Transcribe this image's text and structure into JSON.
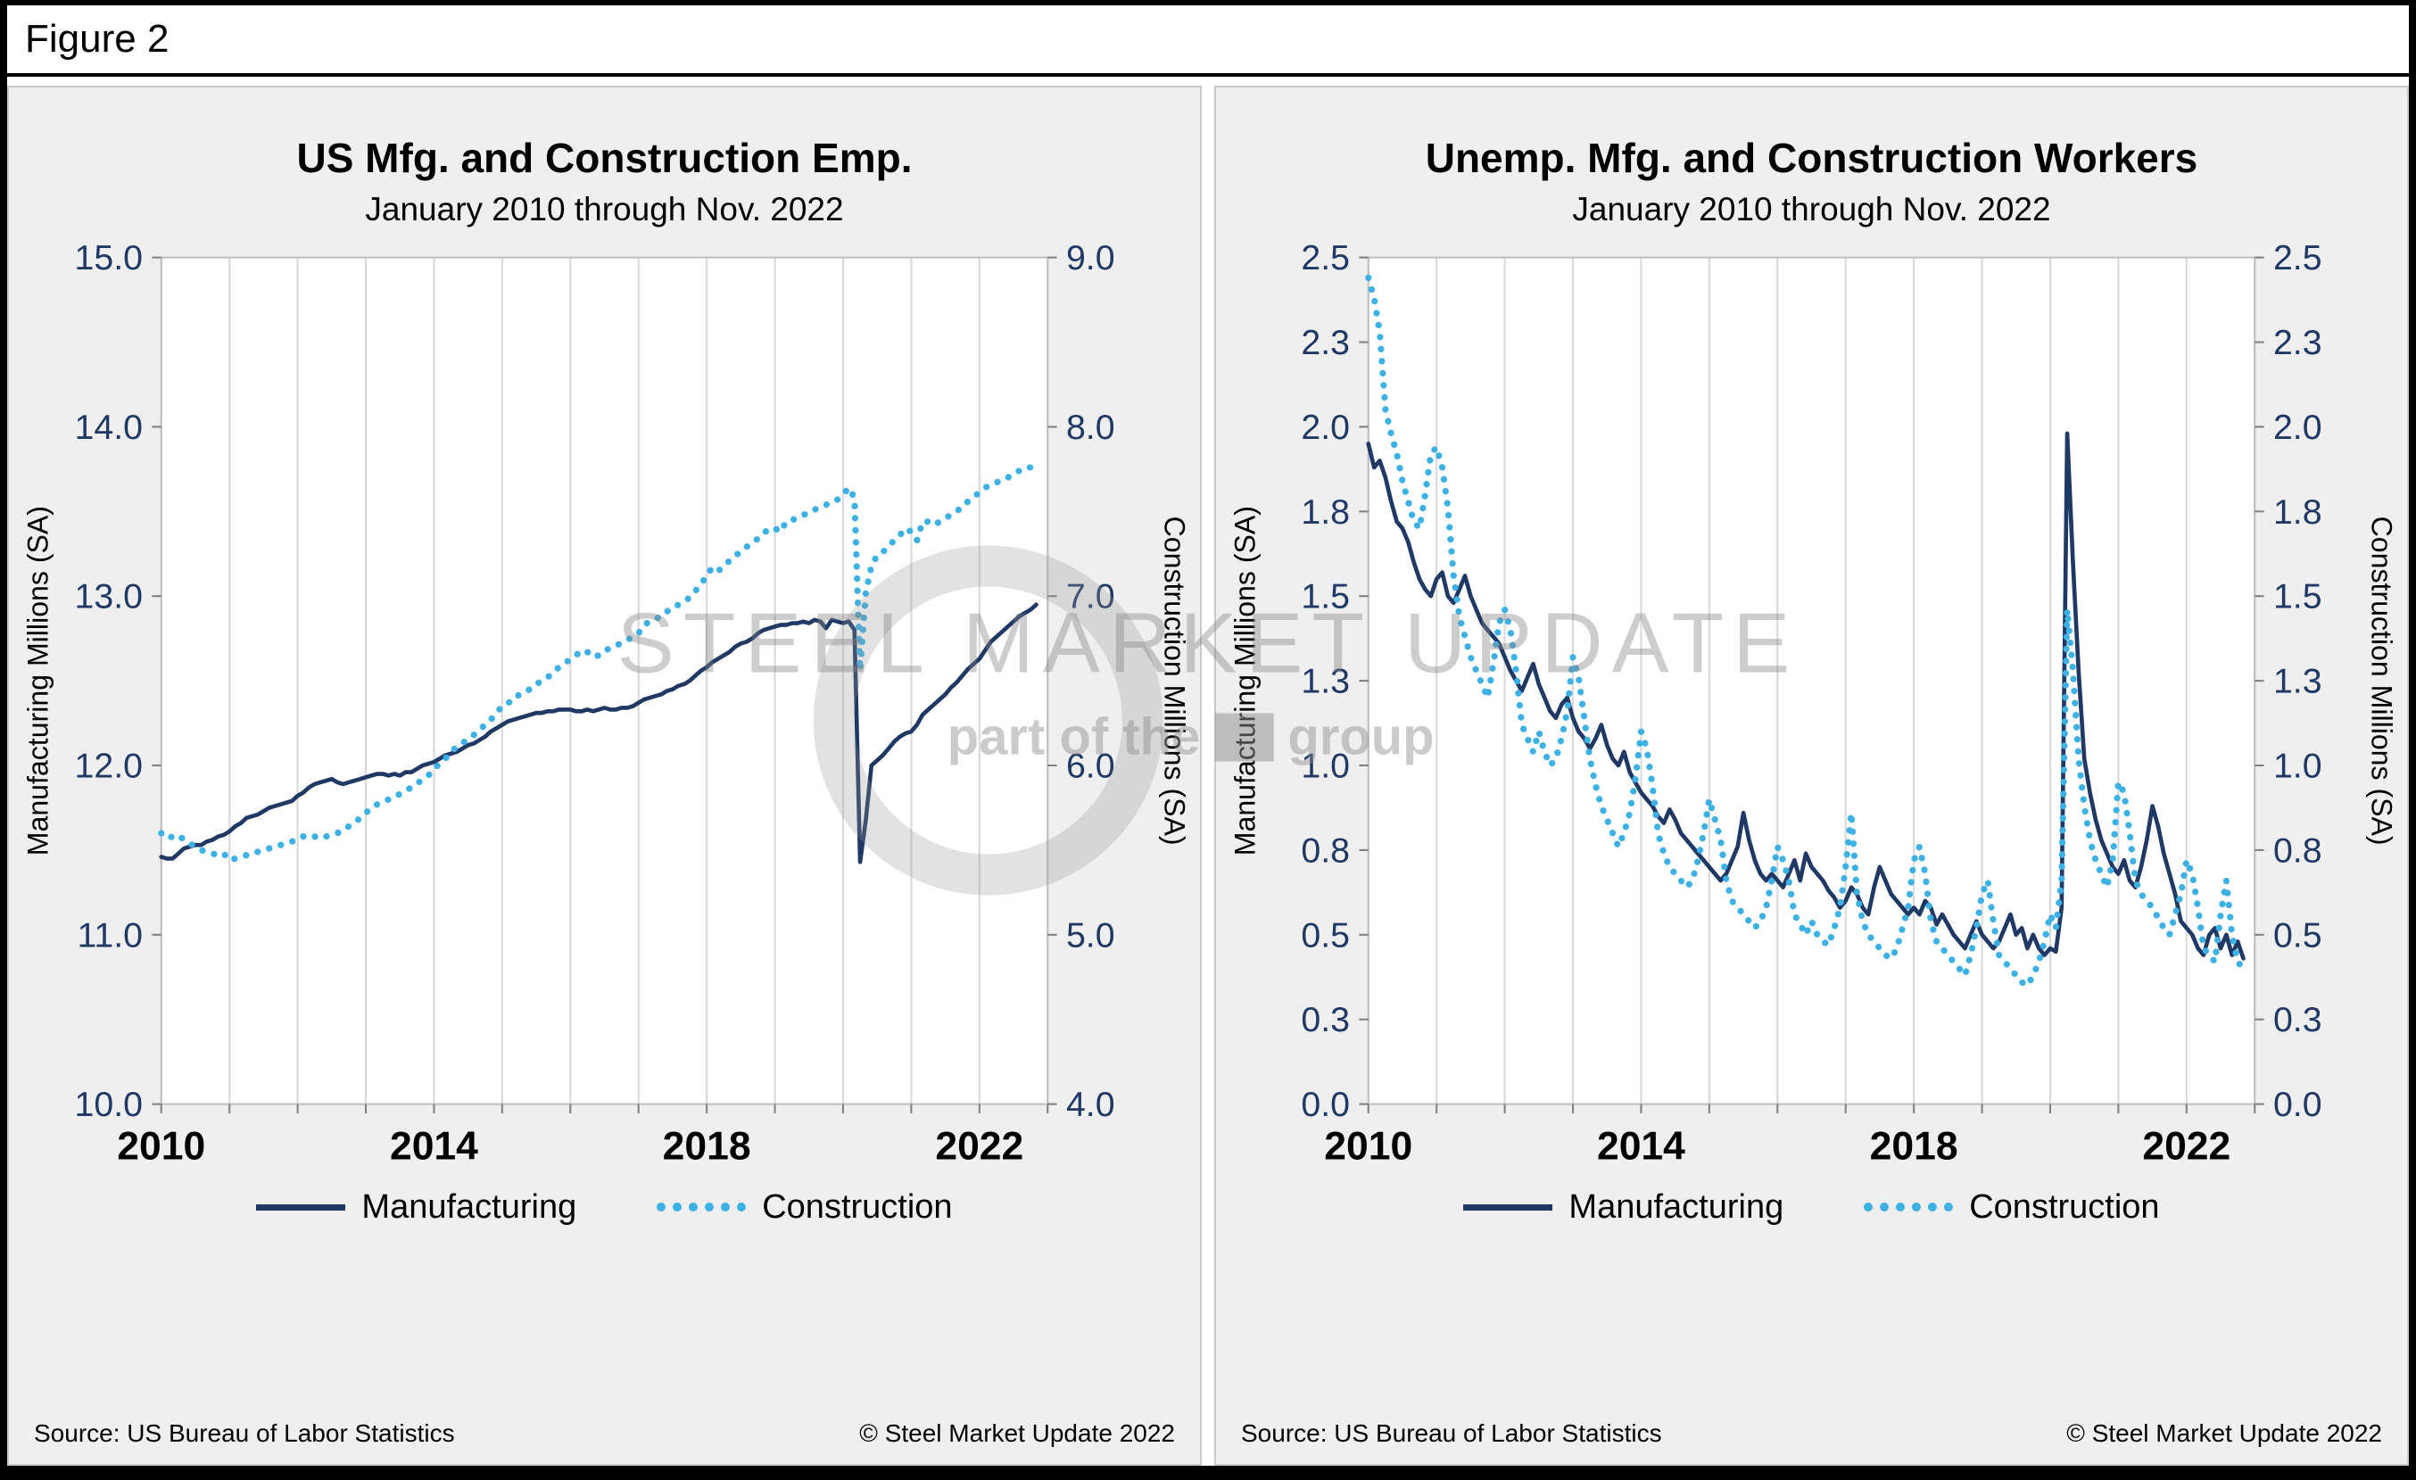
{
  "figure_label": "Figure 2",
  "watermark": {
    "line1": "STEEL MARKET UPDATE",
    "line2a": "part of the",
    "line2b": "group"
  },
  "colors": {
    "manufacturing": "#1F3864",
    "construction": "#3EB1E4",
    "grid": "#D9D9D9",
    "tick_label": "#1F3864",
    "plot_border": "#BFBFBF",
    "tick_mark": "#808080"
  },
  "panels": [
    {
      "source": "Source: US Bureau  of Labor Statistics",
      "copyright": "© Steel Market Update 2022"
    },
    {
      "source": "Source: US Bureau  of Labor Statistics",
      "copyright": "© Steel Market Update 2022"
    }
  ],
  "chart_data": [
    {
      "type": "line",
      "title": "US Mfg. and Construction Emp.",
      "subtitle": "January 2010 through Nov. 2022",
      "x_start": "2010-01",
      "x_end": "2022-11",
      "x_axis_years": [
        2010,
        2023
      ],
      "x_tick_years": [
        2010,
        2014,
        2018,
        2022
      ],
      "grid": "vertical-years",
      "legend_position": "bottom",
      "y_left": {
        "label": "Manufacturing Millions (SA)",
        "min": 10,
        "max": 15,
        "ticks": [
          10,
          11,
          12,
          13,
          14,
          15
        ],
        "labels": [
          "10.0",
          "11.0",
          "12.0",
          "13.0",
          "14.0",
          "15.0"
        ]
      },
      "y_right": {
        "label": "Construction Millions (SA)",
        "min": 4,
        "max": 9,
        "ticks": [
          4,
          5,
          6,
          7,
          8,
          9
        ],
        "labels": [
          "4.0",
          "5.0",
          "6.0",
          "7.0",
          "8.0",
          "9.0"
        ]
      },
      "series": [
        {
          "name": "Manufacturing",
          "axis": "left",
          "style": "solid",
          "color": "#1F3864",
          "values": [
            11.46,
            11.45,
            11.45,
            11.48,
            11.51,
            11.52,
            11.53,
            11.53,
            11.55,
            11.56,
            11.58,
            11.59,
            11.61,
            11.64,
            11.66,
            11.69,
            11.7,
            11.71,
            11.73,
            11.75,
            11.76,
            11.77,
            11.78,
            11.79,
            11.82,
            11.84,
            11.87,
            11.89,
            11.9,
            11.91,
            11.92,
            11.9,
            11.89,
            11.9,
            11.91,
            11.92,
            11.93,
            11.94,
            11.95,
            11.95,
            11.94,
            11.95,
            11.94,
            11.96,
            11.96,
            11.98,
            12.0,
            12.01,
            12.02,
            12.04,
            12.06,
            12.07,
            12.08,
            12.1,
            12.12,
            12.13,
            12.15,
            12.17,
            12.2,
            12.22,
            12.24,
            12.26,
            12.27,
            12.28,
            12.29,
            12.3,
            12.31,
            12.31,
            12.32,
            12.32,
            12.33,
            12.33,
            12.33,
            12.32,
            12.32,
            12.33,
            12.32,
            12.33,
            12.34,
            12.33,
            12.33,
            12.34,
            12.34,
            12.35,
            12.37,
            12.39,
            12.4,
            12.41,
            12.42,
            12.44,
            12.45,
            12.47,
            12.48,
            12.5,
            12.53,
            12.56,
            12.58,
            12.61,
            12.63,
            12.65,
            12.67,
            12.7,
            12.72,
            12.73,
            12.75,
            12.78,
            12.8,
            12.81,
            12.82,
            12.83,
            12.83,
            12.84,
            12.84,
            12.85,
            12.84,
            12.86,
            12.85,
            12.81,
            12.86,
            12.85,
            12.84,
            12.85,
            12.8,
            11.43,
            11.68,
            12.0,
            12.03,
            12.06,
            12.1,
            12.14,
            12.17,
            12.19,
            12.2,
            12.24,
            12.3,
            12.33,
            12.36,
            12.39,
            12.42,
            12.46,
            12.49,
            12.53,
            12.57,
            12.6,
            12.63,
            12.68,
            12.73,
            12.76,
            12.79,
            12.82,
            12.85,
            12.88,
            12.9,
            12.92,
            12.95
          ]
        },
        {
          "name": "Construction",
          "axis": "right",
          "style": "dotted",
          "color": "#3EB1E4",
          "values": [
            5.6,
            5.57,
            5.58,
            5.59,
            5.56,
            5.54,
            5.52,
            5.5,
            5.49,
            5.48,
            5.47,
            5.48,
            5.44,
            5.45,
            5.46,
            5.47,
            5.48,
            5.49,
            5.5,
            5.51,
            5.52,
            5.53,
            5.54,
            5.55,
            5.57,
            5.58,
            5.59,
            5.58,
            5.57,
            5.58,
            5.59,
            5.6,
            5.62,
            5.64,
            5.66,
            5.69,
            5.72,
            5.75,
            5.77,
            5.78,
            5.8,
            5.82,
            5.83,
            5.85,
            5.87,
            5.89,
            5.92,
            5.94,
            5.98,
            6.01,
            6.04,
            6.08,
            6.11,
            6.13,
            6.16,
            6.18,
            6.21,
            6.24,
            6.27,
            6.31,
            6.35,
            6.37,
            6.38,
            6.42,
            6.44,
            6.45,
            6.48,
            6.5,
            6.52,
            6.55,
            6.58,
            6.6,
            6.63,
            6.65,
            6.68,
            6.67,
            6.64,
            6.65,
            6.68,
            6.69,
            6.71,
            6.72,
            6.74,
            6.76,
            6.78,
            6.83,
            6.85,
            6.86,
            6.89,
            6.91,
            6.92,
            6.95,
            6.97,
            6.99,
            7.03,
            7.07,
            7.12,
            7.17,
            7.15,
            7.17,
            7.21,
            7.24,
            7.26,
            7.29,
            7.31,
            7.34,
            7.37,
            7.4,
            7.4,
            7.38,
            7.44,
            7.45,
            7.46,
            7.48,
            7.49,
            7.51,
            7.53,
            7.54,
            7.55,
            7.57,
            7.6,
            7.64,
            7.58,
            6.56,
            7.02,
            7.18,
            7.24,
            7.26,
            7.29,
            7.33,
            7.36,
            7.4,
            7.38,
            7.33,
            7.44,
            7.44,
            7.42,
            7.44,
            7.46,
            7.48,
            7.5,
            7.53,
            7.56,
            7.59,
            7.61,
            7.64,
            7.66,
            7.67,
            7.69,
            7.7,
            7.72,
            7.74,
            7.76,
            7.76,
            7.75
          ]
        }
      ]
    },
    {
      "type": "line",
      "title": "Unemp. Mfg. and Construction Workers",
      "subtitle": "January 2010 through Nov. 2022",
      "x_start": "2010-01",
      "x_end": "2022-11",
      "x_axis_years": [
        2010,
        2023
      ],
      "x_tick_years": [
        2010,
        2014,
        2018,
        2022
      ],
      "grid": "vertical-years",
      "legend_position": "bottom",
      "y_left": {
        "label": "Manufacturing Millions (SA)",
        "min": 0,
        "max": 2.5,
        "ticks": [
          0,
          0.25,
          0.5,
          0.75,
          1.0,
          1.25,
          1.5,
          1.75,
          2.0,
          2.25,
          2.5
        ],
        "labels": [
          "0.0",
          "0.3",
          "0.5",
          "0.8",
          "1.0",
          "1.3",
          "1.5",
          "1.8",
          "2.0",
          "2.3",
          "2.5"
        ]
      },
      "y_right": {
        "label": "Construction Millions (SA)",
        "min": 0,
        "max": 2.5,
        "ticks": [
          0,
          0.25,
          0.5,
          0.75,
          1.0,
          1.25,
          1.5,
          1.75,
          2.0,
          2.25,
          2.5
        ],
        "labels": [
          "0.0",
          "0.3",
          "0.5",
          "0.8",
          "1.0",
          "1.3",
          "1.5",
          "1.8",
          "2.0",
          "2.3",
          "2.5"
        ]
      },
      "series": [
        {
          "name": "Manufacturing",
          "axis": "left",
          "style": "solid",
          "color": "#1F3864",
          "values": [
            1.95,
            1.88,
            1.9,
            1.85,
            1.78,
            1.72,
            1.7,
            1.66,
            1.6,
            1.55,
            1.52,
            1.5,
            1.55,
            1.57,
            1.5,
            1.48,
            1.52,
            1.56,
            1.5,
            1.46,
            1.42,
            1.4,
            1.38,
            1.36,
            1.32,
            1.28,
            1.25,
            1.22,
            1.26,
            1.3,
            1.24,
            1.2,
            1.16,
            1.14,
            1.18,
            1.2,
            1.14,
            1.1,
            1.08,
            1.05,
            1.08,
            1.12,
            1.06,
            1.02,
            1.0,
            1.04,
            0.98,
            0.95,
            0.92,
            0.9,
            0.88,
            0.85,
            0.83,
            0.87,
            0.84,
            0.8,
            0.78,
            0.76,
            0.74,
            0.72,
            0.7,
            0.68,
            0.66,
            0.68,
            0.72,
            0.76,
            0.86,
            0.78,
            0.72,
            0.68,
            0.66,
            0.68,
            0.66,
            0.64,
            0.68,
            0.72,
            0.66,
            0.74,
            0.7,
            0.68,
            0.66,
            0.63,
            0.61,
            0.58,
            0.6,
            0.64,
            0.62,
            0.58,
            0.56,
            0.64,
            0.7,
            0.66,
            0.62,
            0.6,
            0.58,
            0.56,
            0.58,
            0.56,
            0.6,
            0.58,
            0.53,
            0.56,
            0.53,
            0.5,
            0.48,
            0.46,
            0.5,
            0.54,
            0.5,
            0.48,
            0.46,
            0.48,
            0.52,
            0.56,
            0.5,
            0.52,
            0.46,
            0.5,
            0.46,
            0.44,
            0.46,
            0.45,
            0.58,
            1.98,
            1.6,
            1.28,
            1.02,
            0.92,
            0.84,
            0.78,
            0.74,
            0.7,
            0.68,
            0.72,
            0.66,
            0.64,
            0.7,
            0.78,
            0.88,
            0.82,
            0.74,
            0.68,
            0.62,
            0.54,
            0.52,
            0.5,
            0.46,
            0.44,
            0.5,
            0.52,
            0.46,
            0.5,
            0.44,
            0.48,
            0.43
          ]
        },
        {
          "name": "Construction",
          "axis": "right",
          "style": "dotted",
          "color": "#3EB1E4",
          "values": [
            2.44,
            2.38,
            2.28,
            2.05,
            1.98,
            1.92,
            1.84,
            1.78,
            1.72,
            1.7,
            1.8,
            1.92,
            1.94,
            1.88,
            1.76,
            1.56,
            1.44,
            1.38,
            1.32,
            1.28,
            1.24,
            1.2,
            1.3,
            1.42,
            1.46,
            1.4,
            1.28,
            1.12,
            1.08,
            1.04,
            1.1,
            1.04,
            1.0,
            1.02,
            1.08,
            1.16,
            1.32,
            1.26,
            1.14,
            1.02,
            0.94,
            0.88,
            0.84,
            0.8,
            0.76,
            0.8,
            0.86,
            0.96,
            1.1,
            1.05,
            0.94,
            0.8,
            0.74,
            0.7,
            0.68,
            0.66,
            0.64,
            0.66,
            0.72,
            0.8,
            0.9,
            0.84,
            0.78,
            0.66,
            0.6,
            0.58,
            0.56,
            0.54,
            0.52,
            0.54,
            0.58,
            0.66,
            0.76,
            0.72,
            0.66,
            0.56,
            0.53,
            0.5,
            0.54,
            0.5,
            0.48,
            0.47,
            0.52,
            0.58,
            0.7,
            0.86,
            0.62,
            0.54,
            0.5,
            0.48,
            0.46,
            0.44,
            0.43,
            0.46,
            0.52,
            0.58,
            0.72,
            0.76,
            0.68,
            0.54,
            0.48,
            0.46,
            0.44,
            0.42,
            0.4,
            0.38,
            0.44,
            0.52,
            0.62,
            0.66,
            0.54,
            0.44,
            0.42,
            0.4,
            0.38,
            0.36,
            0.35,
            0.38,
            0.42,
            0.48,
            0.56,
            0.52,
            0.66,
            1.46,
            1.28,
            1.02,
            0.88,
            0.78,
            0.72,
            0.68,
            0.64,
            0.72,
            0.95,
            0.92,
            0.8,
            0.66,
            0.62,
            0.6,
            0.58,
            0.55,
            0.52,
            0.5,
            0.56,
            0.62,
            0.72,
            0.68,
            0.58,
            0.46,
            0.44,
            0.42,
            0.56,
            0.66,
            0.5,
            0.42,
            0.4
          ]
        }
      ]
    }
  ]
}
